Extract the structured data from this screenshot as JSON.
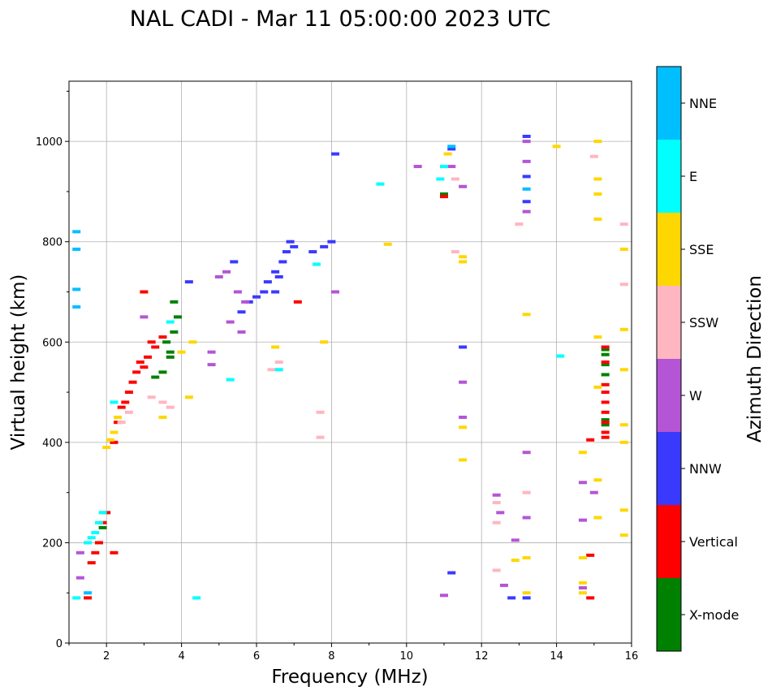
{
  "chart_data": {
    "type": "scatter",
    "title": "NAL CADI - Mar 11 05:00:00 2023 UTC",
    "xlabel": "Frequency (MHz)",
    "ylabel": "Virtual height (km)",
    "xlim": [
      1,
      16
    ],
    "ylim": [
      0,
      1120
    ],
    "x_ticks": [
      2,
      4,
      6,
      8,
      10,
      12,
      14,
      16
    ],
    "y_ticks": [
      0,
      200,
      400,
      600,
      800,
      1000
    ],
    "grid": true,
    "colorbar": {
      "label": "Azimuth Direction",
      "categories": [
        {
          "name": "X-mode",
          "color": "#008000"
        },
        {
          "name": "Vertical",
          "color": "#ff0000"
        },
        {
          "name": "NNW",
          "color": "#3a3aff"
        },
        {
          "name": "W",
          "color": "#b455d6"
        },
        {
          "name": "SSW",
          "color": "#ffb6c1"
        },
        {
          "name": "SSE",
          "color": "#ffd700"
        },
        {
          "name": "E",
          "color": "#00ffff"
        },
        {
          "name": "NNE",
          "color": "#00bfff"
        }
      ]
    },
    "series": [
      {
        "name": "X-mode",
        "points": [
          [
            3.7,
            570
          ],
          [
            3.7,
            580
          ],
          [
            3.5,
            540
          ],
          [
            3.8,
            620
          ],
          [
            3.9,
            650
          ],
          [
            3.3,
            530
          ],
          [
            3.6,
            600
          ],
          [
            15.3,
            435
          ],
          [
            15.3,
            445
          ],
          [
            15.3,
            535
          ],
          [
            15.3,
            555
          ],
          [
            15.3,
            575
          ],
          [
            15.3,
            585
          ],
          [
            11.0,
            895
          ],
          [
            1.9,
            230
          ],
          [
            3.8,
            680
          ]
        ]
      },
      {
        "name": "Vertical",
        "points": [
          [
            1.5,
            90
          ],
          [
            1.6,
            160
          ],
          [
            1.7,
            180
          ],
          [
            1.8,
            200
          ],
          [
            1.9,
            240
          ],
          [
            2.0,
            260
          ],
          [
            2.2,
            400
          ],
          [
            2.3,
            440
          ],
          [
            2.4,
            470
          ],
          [
            2.5,
            480
          ],
          [
            2.6,
            500
          ],
          [
            2.7,
            520
          ],
          [
            2.8,
            540
          ],
          [
            2.9,
            560
          ],
          [
            3.0,
            550
          ],
          [
            3.1,
            570
          ],
          [
            3.2,
            600
          ],
          [
            3.3,
            590
          ],
          [
            3.0,
            700
          ],
          [
            3.5,
            610
          ],
          [
            2.2,
            180
          ],
          [
            15.3,
            410
          ],
          [
            15.3,
            420
          ],
          [
            15.3,
            440
          ],
          [
            15.3,
            460
          ],
          [
            15.3,
            480
          ],
          [
            15.3,
            500
          ],
          [
            15.3,
            515
          ],
          [
            15.3,
            560
          ],
          [
            15.3,
            590
          ],
          [
            14.9,
            175
          ],
          [
            14.9,
            90
          ],
          [
            14.9,
            405
          ],
          [
            7.1,
            680
          ],
          [
            11.0,
            890
          ]
        ]
      },
      {
        "name": "NNW",
        "points": [
          [
            6.2,
            700
          ],
          [
            6.3,
            720
          ],
          [
            6.5,
            740
          ],
          [
            6.7,
            760
          ],
          [
            6.8,
            780
          ],
          [
            6.9,
            800
          ],
          [
            7.0,
            790
          ],
          [
            6.6,
            730
          ],
          [
            6.5,
            700
          ],
          [
            7.5,
            780
          ],
          [
            7.8,
            790
          ],
          [
            8.0,
            800
          ],
          [
            5.4,
            760
          ],
          [
            5.6,
            660
          ],
          [
            5.8,
            680
          ],
          [
            6.0,
            690
          ],
          [
            4.2,
            720
          ],
          [
            13.2,
            1010
          ],
          [
            13.2,
            930
          ],
          [
            13.2,
            880
          ],
          [
            11.5,
            590
          ],
          [
            11.2,
            985
          ],
          [
            8.1,
            975
          ],
          [
            12.8,
            90
          ],
          [
            13.2,
            90
          ],
          [
            11.2,
            140
          ]
        ]
      },
      {
        "name": "W",
        "points": [
          [
            5.0,
            730
          ],
          [
            5.2,
            740
          ],
          [
            5.5,
            700
          ],
          [
            5.7,
            680
          ],
          [
            4.8,
            580
          ],
          [
            5.3,
            640
          ],
          [
            5.6,
            620
          ],
          [
            10.3,
            950
          ],
          [
            11.5,
            450
          ],
          [
            11.5,
            520
          ],
          [
            13.2,
            250
          ],
          [
            13.2,
            380
          ],
          [
            12.4,
            295
          ],
          [
            12.5,
            260
          ],
          [
            12.9,
            205
          ],
          [
            14.7,
            320
          ],
          [
            15.0,
            300
          ],
          [
            14.7,
            245
          ],
          [
            14.7,
            110
          ],
          [
            13.2,
            1000
          ],
          [
            13.2,
            960
          ],
          [
            11.2,
            950
          ],
          [
            8.1,
            700
          ],
          [
            3.0,
            650
          ],
          [
            1.3,
            180
          ],
          [
            1.3,
            130
          ],
          [
            11.5,
            910
          ],
          [
            13.2,
            860
          ],
          [
            12.6,
            115
          ],
          [
            11.0,
            95
          ],
          [
            4.8,
            555
          ]
        ]
      },
      {
        "name": "SSW",
        "points": [
          [
            2.4,
            440
          ],
          [
            2.6,
            460
          ],
          [
            3.2,
            490
          ],
          [
            3.5,
            480
          ],
          [
            3.7,
            470
          ],
          [
            7.7,
            410
          ],
          [
            7.7,
            460
          ],
          [
            12.4,
            145
          ],
          [
            12.4,
            240
          ],
          [
            12.4,
            280
          ],
          [
            13.2,
            300
          ],
          [
            13.0,
            835
          ],
          [
            11.3,
            925
          ],
          [
            11.3,
            780
          ],
          [
            15.8,
            715
          ],
          [
            15.8,
            835
          ],
          [
            15.0,
            970
          ],
          [
            6.6,
            560
          ],
          [
            6.4,
            545
          ]
        ]
      },
      {
        "name": "SSE",
        "points": [
          [
            2.0,
            390
          ],
          [
            2.1,
            405
          ],
          [
            2.2,
            420
          ],
          [
            2.3,
            450
          ],
          [
            3.5,
            450
          ],
          [
            4.2,
            490
          ],
          [
            4.0,
            580
          ],
          [
            4.3,
            600
          ],
          [
            9.5,
            795
          ],
          [
            11.5,
            760
          ],
          [
            11.5,
            770
          ],
          [
            11.5,
            365
          ],
          [
            11.5,
            430
          ],
          [
            12.9,
            165
          ],
          [
            13.2,
            170
          ],
          [
            13.2,
            100
          ],
          [
            13.2,
            655
          ],
          [
            14.7,
            380
          ],
          [
            14.7,
            170
          ],
          [
            14.7,
            120
          ],
          [
            14.7,
            100
          ],
          [
            15.1,
            1000
          ],
          [
            15.1,
            925
          ],
          [
            15.1,
            895
          ],
          [
            15.1,
            845
          ],
          [
            15.1,
            610
          ],
          [
            15.1,
            510
          ],
          [
            15.1,
            325
          ],
          [
            15.1,
            250
          ],
          [
            15.8,
            785
          ],
          [
            15.8,
            625
          ],
          [
            15.8,
            545
          ],
          [
            15.8,
            435
          ],
          [
            15.8,
            400
          ],
          [
            15.8,
            265
          ],
          [
            15.8,
            215
          ],
          [
            14.0,
            990
          ],
          [
            11.1,
            975
          ],
          [
            6.5,
            590
          ],
          [
            7.8,
            600
          ]
        ]
      },
      {
        "name": "E",
        "points": [
          [
            1.5,
            200
          ],
          [
            1.6,
            210
          ],
          [
            1.7,
            220
          ],
          [
            1.8,
            240
          ],
          [
            1.9,
            260
          ],
          [
            4.4,
            90
          ],
          [
            1.2,
            90
          ],
          [
            10.9,
            925
          ],
          [
            11.0,
            950
          ],
          [
            14.1,
            572
          ],
          [
            7.6,
            755
          ],
          [
            6.6,
            545
          ],
          [
            3.7,
            640
          ],
          [
            2.2,
            480
          ],
          [
            5.3,
            525
          ],
          [
            9.3,
            915
          ]
        ]
      },
      {
        "name": "NNE",
        "points": [
          [
            1.2,
            820
          ],
          [
            1.2,
            785
          ],
          [
            1.2,
            705
          ],
          [
            1.2,
            670
          ],
          [
            11.2,
            990
          ],
          [
            13.2,
            905
          ],
          [
            1.5,
            100
          ]
        ]
      }
    ]
  }
}
